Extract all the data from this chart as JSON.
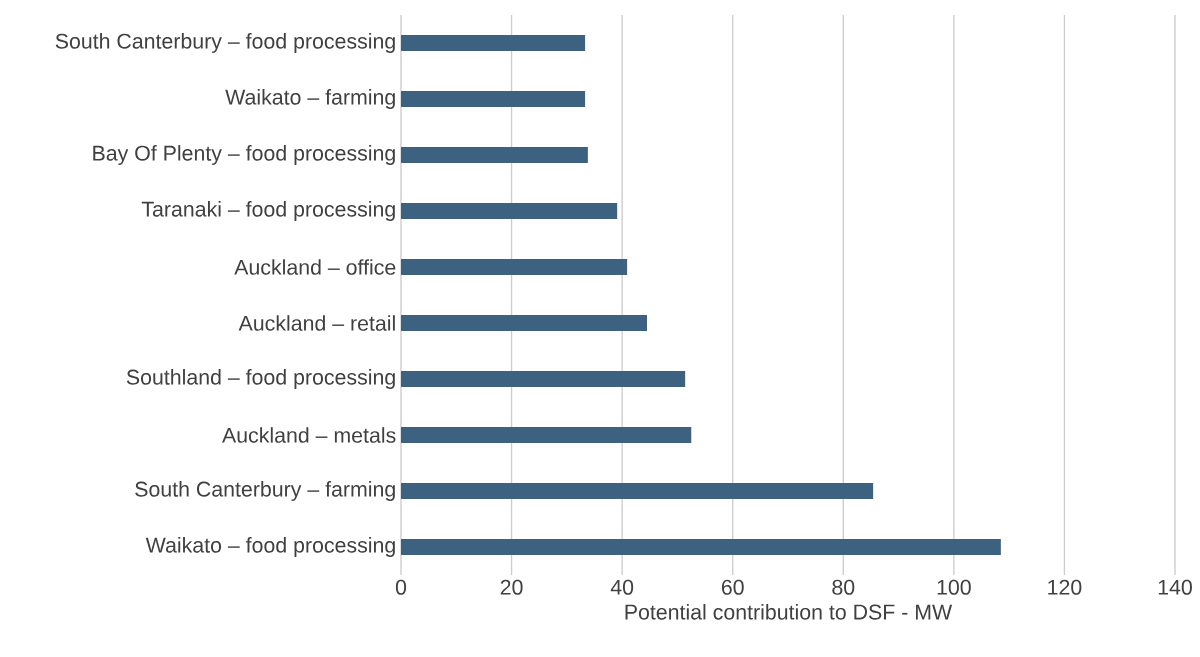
{
  "chart_data": {
    "type": "bar",
    "orientation": "horizontal",
    "xlabel": "Potential contribution to DSF  - MW",
    "categories": [
      "South Canterbury – food processing",
      "Waikato – farming",
      "Bay Of Plenty – food processing",
      "Taranaki – food processing",
      "Auckland – office",
      "Auckland – retail",
      "Southland – food processing",
      "Auckland – metals",
      "South Canterbury – farming",
      "Waikato – food processing"
    ],
    "values": [
      33.3,
      33.3,
      33.8,
      39.1,
      40.9,
      44.5,
      51.4,
      52.5,
      85.4,
      108.5
    ],
    "color": "#3d6180",
    "xlim": [
      0,
      140
    ],
    "xticks": [
      0,
      20,
      40,
      60,
      80,
      100,
      120,
      140
    ],
    "grid": "x"
  }
}
